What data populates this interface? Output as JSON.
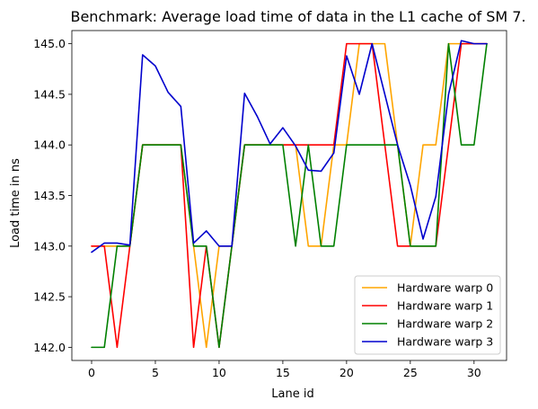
{
  "chart_data": {
    "type": "line",
    "title": "Benchmark: Average load time of data in the L1 cache of SM 7.",
    "xlabel": "Lane id",
    "ylabel": "Load time in ns",
    "xlim": [
      -1.55,
      32.55
    ],
    "ylim": [
      141.87,
      145.13
    ],
    "xticks": [
      0,
      5,
      10,
      15,
      20,
      25,
      30
    ],
    "xtick_labels": [
      "0",
      "5",
      "10",
      "15",
      "20",
      "25",
      "30"
    ],
    "yticks": [
      142.0,
      142.5,
      143.0,
      143.5,
      144.0,
      144.5,
      145.0
    ],
    "ytick_labels": [
      "142.0",
      "142.5",
      "143.0",
      "143.5",
      "144.0",
      "144.5",
      "145.0"
    ],
    "grid": false,
    "legend_position": "lower-right",
    "x": [
      0,
      1,
      2,
      3,
      4,
      5,
      6,
      7,
      8,
      9,
      10,
      11,
      12,
      13,
      14,
      15,
      16,
      17,
      18,
      19,
      20,
      21,
      22,
      23,
      24,
      25,
      26,
      27,
      28,
      29,
      30,
      31
    ],
    "series": [
      {
        "name": "Hardware warp 0",
        "color": "#ffa500",
        "values": [
          143.0,
          143.0,
          143.0,
          143.0,
          144.0,
          144.0,
          144.0,
          144.0,
          143.0,
          142.0,
          143.0,
          143.0,
          144.0,
          144.0,
          144.0,
          144.0,
          144.0,
          143.0,
          143.0,
          144.0,
          144.0,
          145.0,
          145.0,
          145.0,
          144.0,
          143.0,
          144.0,
          144.0,
          145.0,
          145.0,
          145.0,
          145.0
        ]
      },
      {
        "name": "Hardware warp 1",
        "color": "#ff0000",
        "values": [
          143.0,
          143.0,
          142.0,
          143.0,
          144.0,
          144.0,
          144.0,
          144.0,
          142.0,
          143.0,
          142.0,
          143.0,
          144.0,
          144.0,
          144.0,
          144.0,
          144.0,
          144.0,
          144.0,
          144.0,
          145.0,
          145.0,
          145.0,
          144.0,
          143.0,
          143.0,
          143.0,
          143.0,
          144.0,
          145.0,
          145.0,
          145.0
        ]
      },
      {
        "name": "Hardware warp 2",
        "color": "#008000",
        "values": [
          142.0,
          142.0,
          143.0,
          143.0,
          144.0,
          144.0,
          144.0,
          144.0,
          143.0,
          143.0,
          142.0,
          143.0,
          144.0,
          144.0,
          144.0,
          144.0,
          143.0,
          144.0,
          143.0,
          143.0,
          144.0,
          144.0,
          144.0,
          144.0,
          144.0,
          143.0,
          143.0,
          143.0,
          145.0,
          144.0,
          144.0,
          145.0
        ]
      },
      {
        "name": "Hardware warp 3",
        "color": "#0000cd",
        "values": [
          142.94,
          143.03,
          143.03,
          143.01,
          144.89,
          144.78,
          144.52,
          144.38,
          143.03,
          143.15,
          143.0,
          143.0,
          144.51,
          144.28,
          144.01,
          144.17,
          143.99,
          143.75,
          143.74,
          143.92,
          144.88,
          144.5,
          145.0,
          144.5,
          144.0,
          143.6,
          143.07,
          143.49,
          144.5,
          145.03,
          145.0,
          145.0
        ]
      }
    ]
  }
}
